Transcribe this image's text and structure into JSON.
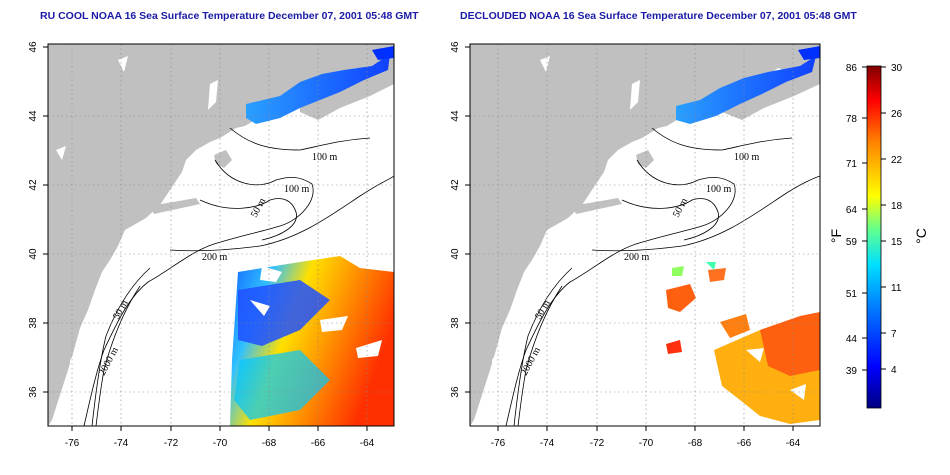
{
  "panels": [
    {
      "title": "RU COOL NOAA 16 Sea Surface Temperature December 07, 2001 05:48 GMT",
      "contour_labels": [
        "100 m",
        "100 m",
        "50 m",
        "200 m",
        "50 m",
        "2000 m"
      ]
    },
    {
      "title": "DECLOUDED NOAA 16 Sea Surface Temperature December 07, 2001 05:48 GMT",
      "contour_labels": [
        "100 m",
        "100 m",
        "50 m",
        "200 m",
        "50 m",
        "2000 m"
      ]
    }
  ],
  "axes": {
    "x_ticks": [
      "-76",
      "-74",
      "-72",
      "-70",
      "-68",
      "-66",
      "-64"
    ],
    "y_ticks": [
      "46",
      "44",
      "42",
      "40",
      "38",
      "36"
    ]
  },
  "colorbar": {
    "fahrenheit_label": "°F",
    "celsius_label": "°C",
    "fahrenheit_ticks": [
      "86",
      "78",
      "71",
      "64",
      "59",
      "51",
      "44",
      "39"
    ],
    "celsius_ticks": [
      "30",
      "26",
      "22",
      "18",
      "15",
      "11",
      "7",
      "4"
    ],
    "colors": [
      "#000080",
      "#0000ff",
      "#0080ff",
      "#00ffff",
      "#80ff80",
      "#ffff00",
      "#ff8000",
      "#ff0000",
      "#800000"
    ]
  },
  "colors": {
    "land": "#c0c0c0",
    "ocean": "#ffffff",
    "title": "#1a1aa6"
  }
}
